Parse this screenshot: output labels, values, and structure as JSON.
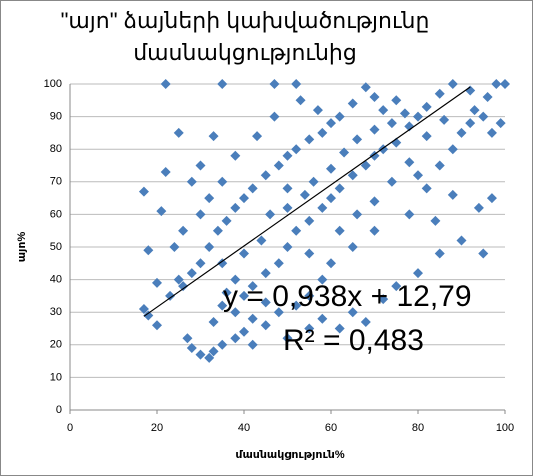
{
  "chart_data": {
    "type": "scatter",
    "title_lines": [
      "\"այո\" ձայների կախվածությունը",
      "մասնակցությունից"
    ],
    "xlabel": "մասնակցություն%",
    "ylabel": "այո%",
    "xlim": [
      0,
      100
    ],
    "ylim": [
      0,
      100
    ],
    "xticks": [
      0,
      20,
      40,
      60,
      80,
      100
    ],
    "yticks": [
      0,
      10,
      20,
      30,
      40,
      50,
      60,
      70,
      80,
      90,
      100
    ],
    "grid": true,
    "series": [
      {
        "name": "այո%",
        "color": "#4a7ebb",
        "x": [
          17,
          18,
          20,
          22,
          21,
          22,
          35,
          47,
          52,
          25,
          30,
          17,
          18,
          20,
          23,
          24,
          25,
          27,
          28,
          30,
          32,
          33,
          35,
          38,
          40,
          42,
          45,
          50,
          55,
          58,
          62,
          65,
          68,
          72,
          75,
          80,
          85,
          90,
          95,
          94,
          97,
          100,
          98,
          96,
          99,
          97,
          93,
          92,
          88,
          85,
          82,
          80,
          78,
          75,
          72,
          70,
          68,
          65,
          62,
          60,
          58,
          55,
          52,
          50,
          48,
          45,
          42,
          40,
          38,
          36,
          34,
          32,
          30,
          28,
          26,
          35,
          38,
          40,
          42,
          45,
          48,
          50,
          52,
          55,
          58,
          60,
          62,
          65,
          68,
          70,
          72,
          75,
          78,
          80,
          82,
          85,
          88,
          90,
          92,
          95,
          60,
          58,
          55,
          52,
          48,
          45,
          42,
          38,
          35,
          33,
          36,
          40,
          44,
          46,
          50,
          54,
          56,
          60,
          63,
          66,
          70,
          74,
          77,
          82,
          86,
          50,
          55,
          62,
          66,
          70,
          74,
          43,
          38,
          35,
          32,
          30,
          47,
          53,
          57,
          78,
          84,
          88,
          65,
          70,
          33,
          28,
          26
        ],
        "values": [
          67,
          49,
          39,
          100,
          61,
          73,
          100,
          100,
          100,
          85,
          75,
          31,
          29,
          26,
          35,
          50,
          40,
          22,
          19,
          17,
          16,
          18,
          20,
          22,
          24,
          20,
          26,
          22,
          25,
          28,
          25,
          30,
          27,
          34,
          38,
          42,
          48,
          52,
          48,
          62,
          65,
          100,
          100,
          96,
          88,
          85,
          92,
          98,
          100,
          97,
          93,
          90,
          87,
          95,
          92,
          96,
          99,
          94,
          90,
          88,
          85,
          83,
          80,
          78,
          75,
          72,
          68,
          65,
          62,
          58,
          55,
          50,
          45,
          42,
          38,
          45,
          40,
          35,
          38,
          42,
          45,
          50,
          55,
          58,
          62,
          65,
          68,
          72,
          75,
          78,
          80,
          82,
          76,
          72,
          68,
          75,
          80,
          85,
          88,
          90,
          45,
          40,
          35,
          32,
          30,
          33,
          28,
          30,
          32,
          27,
          36,
          48,
          52,
          60,
          62,
          66,
          70,
          74,
          79,
          83,
          86,
          88,
          91,
          84,
          89,
          68,
          48,
          55,
          60,
          64,
          70,
          84,
          78,
          70,
          65,
          60,
          90,
          95,
          92,
          60,
          58,
          66,
          50,
          55,
          84,
          70,
          55
        ]
      }
    ],
    "trendline": {
      "x": [
        17,
        92
      ],
      "values": [
        28.74,
        99.09
      ]
    },
    "annotations": [
      "y = 0,938x + 12,79",
      "R² = 0,483"
    ]
  }
}
